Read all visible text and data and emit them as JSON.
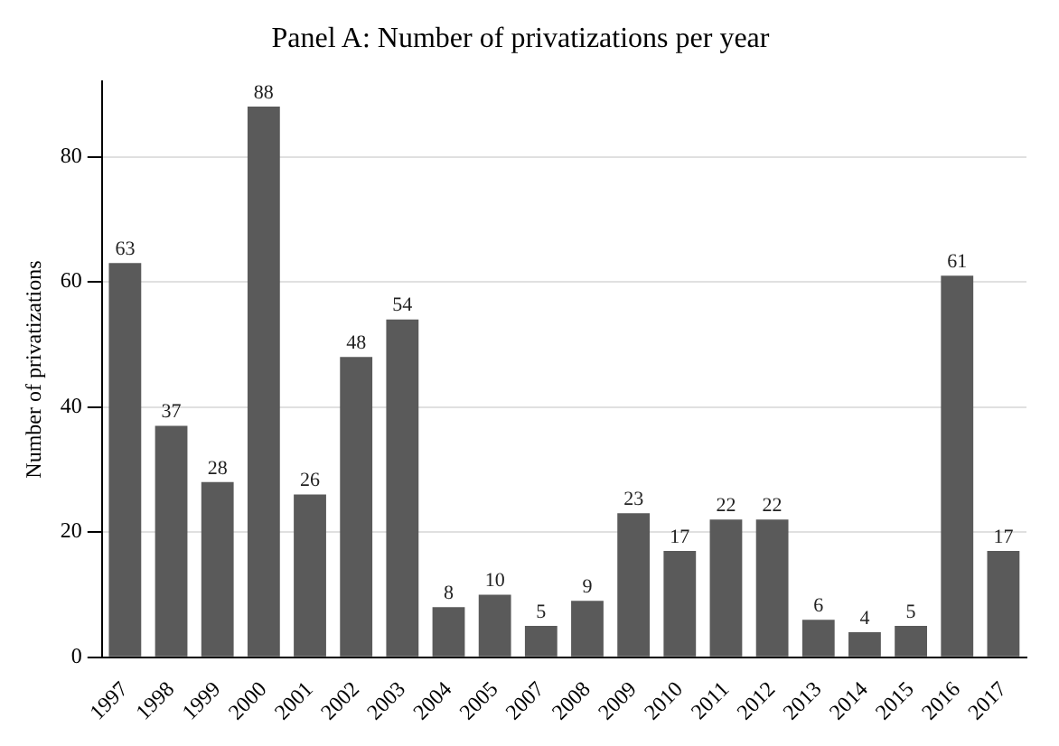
{
  "chart_data": {
    "type": "bar",
    "title": "Panel A: Number of privatizations per year",
    "ylabel": "Number of privatizations",
    "categories": [
      "1997",
      "1998",
      "1999",
      "2000",
      "2001",
      "2002",
      "2003",
      "2004",
      "2005",
      "2007",
      "2008",
      "2009",
      "2010",
      "2011",
      "2012",
      "2013",
      "2014",
      "2015",
      "2016",
      "2017"
    ],
    "values": [
      63,
      37,
      28,
      88,
      26,
      48,
      54,
      8,
      10,
      5,
      9,
      23,
      17,
      22,
      22,
      6,
      4,
      5,
      61,
      17
    ],
    "color": "#5a5a5a",
    "ylim": [
      0,
      92
    ],
    "yticks": [
      0,
      20,
      40,
      60,
      80
    ],
    "grid": "y",
    "data_labels": true,
    "legend": false
  }
}
